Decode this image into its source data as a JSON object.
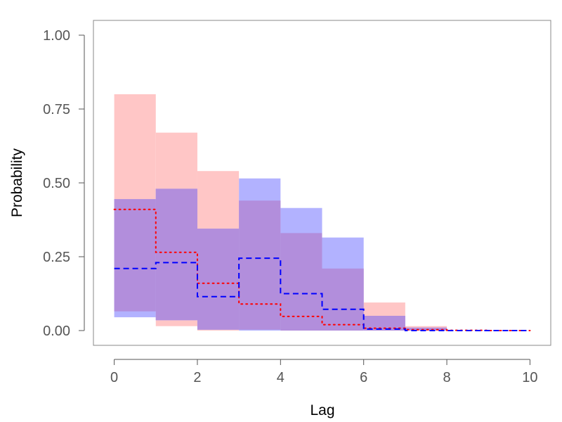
{
  "chart_data": {
    "type": "area",
    "title": "",
    "xlabel": "Lag",
    "ylabel": "Probability",
    "xlim": [
      -0.5,
      10.5
    ],
    "ylim": [
      -0.05,
      1.05
    ],
    "x_ticks": [
      "0",
      "2",
      "4",
      "6",
      "8",
      "10"
    ],
    "y_ticks": [
      "0.00",
      "0.25",
      "0.50",
      "0.75",
      "1.00"
    ],
    "x_tick_values": [
      0,
      2,
      4,
      6,
      8,
      10
    ],
    "y_tick_values": [
      0,
      0.25,
      0.5,
      0.75,
      1.0
    ],
    "grid": false,
    "legend": "none",
    "series": [
      {
        "color": "#ff0000",
        "band_color": "#ffc6c6",
        "line_style": "dotted",
        "bins": [
          0,
          1,
          2,
          3,
          4,
          5,
          6,
          7,
          8,
          9,
          10
        ],
        "values": [
          0.41,
          0.265,
          0.16,
          0.09,
          0.048,
          0.02,
          0.008,
          0.003,
          0.001,
          0.0
        ],
        "lower": [
          0.065,
          0.015,
          0.0,
          0.003,
          0.0,
          0.0,
          0.0,
          0.0,
          0.0,
          0.0
        ],
        "upper": [
          0.8,
          0.67,
          0.54,
          0.44,
          0.33,
          0.21,
          0.095,
          0.015,
          0.0,
          0.0
        ]
      },
      {
        "color": "#0000ff",
        "band_color": "#b2b2ff",
        "line_style": "dashed",
        "bins": [
          0,
          1,
          2,
          3,
          4,
          5,
          6,
          7,
          8,
          9,
          10
        ],
        "values": [
          0.21,
          0.23,
          0.115,
          0.245,
          0.125,
          0.072,
          0.005,
          0.0,
          0.0,
          0.0
        ],
        "lower": [
          0.045,
          0.035,
          0.003,
          0.0,
          0.0,
          0.0,
          0.0,
          0.0,
          0.0,
          0.0
        ],
        "upper": [
          0.445,
          0.48,
          0.345,
          0.515,
          0.415,
          0.315,
          0.05,
          0.01,
          0.0,
          0.0
        ]
      }
    ],
    "overlap_color": "#b28edc"
  }
}
